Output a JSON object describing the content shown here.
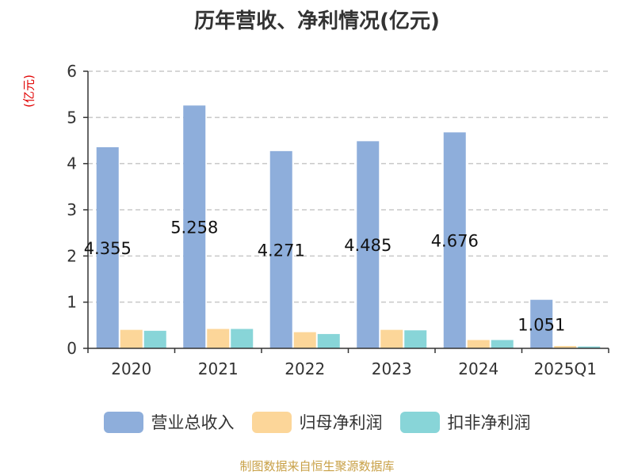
{
  "chart_data": {
    "type": "bar",
    "title": "历年营收、净利情况(亿元)",
    "ylabel": "(亿元)",
    "categories": [
      "2020",
      "2021",
      "2022",
      "2023",
      "2024",
      "2025Q1"
    ],
    "ylim": [
      0,
      6
    ],
    "yticks": [
      0,
      1,
      2,
      3,
      4,
      5,
      6
    ],
    "grid": true,
    "legend_position": "bottom",
    "series": [
      {
        "name": "营业总收入",
        "color": "#8eaedb",
        "values": [
          4.355,
          5.258,
          4.271,
          4.485,
          4.676,
          1.051
        ],
        "labels": [
          "4.355",
          "5.258",
          "4.271",
          "4.485",
          "4.676",
          "1.051"
        ]
      },
      {
        "name": "归母净利润",
        "color": "#fcd699",
        "values": [
          0.4,
          0.42,
          0.35,
          0.4,
          0.18,
          0.05
        ]
      },
      {
        "name": "扣非净利润",
        "color": "#88d5d8",
        "values": [
          0.38,
          0.42,
          0.31,
          0.39,
          0.18,
          0.04
        ]
      }
    ]
  },
  "source_note": "制图数据来自恒生聚源数据库"
}
